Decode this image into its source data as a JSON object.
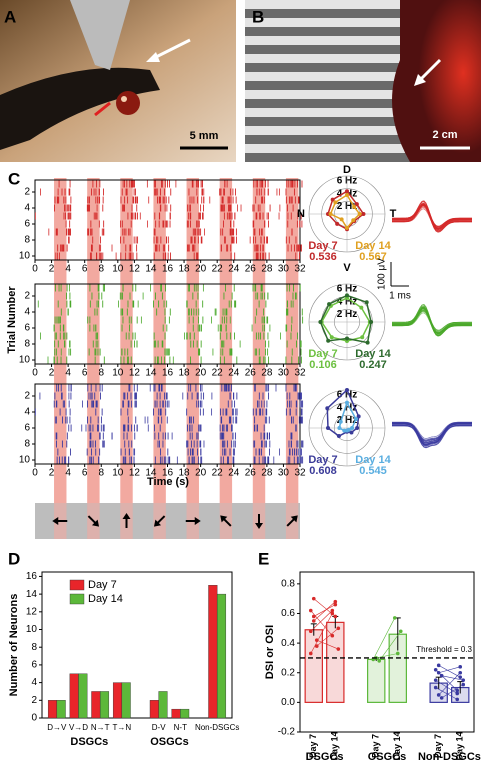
{
  "panel_labels": [
    "A",
    "B",
    "C",
    "D",
    "E"
  ],
  "photos": [
    {
      "scale": "5 mm"
    },
    {
      "scale": "2 cm"
    }
  ],
  "raster": {
    "y_label": "Trial Number",
    "x_label": "Time (s)",
    "xlim": [
      0,
      32
    ],
    "xticks": [
      0,
      2,
      4,
      6,
      8,
      10,
      12,
      14,
      16,
      18,
      20,
      22,
      24,
      26,
      28,
      30,
      32
    ],
    "ylim": [
      0.5,
      10.5
    ],
    "yticks": [
      2,
      4,
      6,
      8,
      10
    ],
    "rows": [
      {
        "color": "#d42a2a"
      },
      {
        "color": "#4aa82a"
      },
      {
        "color": "#3a3aa0"
      }
    ],
    "stim_color": "#f2a9a0",
    "stimuli": [
      {
        "start": 2.3,
        "end": 3.8,
        "direction": 180
      },
      {
        "start": 6.3,
        "end": 7.8,
        "direction": -45
      },
      {
        "start": 10.3,
        "end": 11.8,
        "direction": 90
      },
      {
        "start": 14.3,
        "end": 15.8,
        "direction": -135
      },
      {
        "start": 18.3,
        "end": 19.8,
        "direction": 0
      },
      {
        "start": 22.3,
        "end": 23.8,
        "direction": 135
      },
      {
        "start": 26.3,
        "end": 27.8,
        "direction": -90
      },
      {
        "start": 30.3,
        "end": 31.8,
        "direction": 45
      }
    ]
  },
  "polar": {
    "axis_labels": [
      "D",
      "V",
      "N",
      "T"
    ],
    "rlim": [
      0,
      6
    ],
    "rings": [
      {
        "value": 2,
        "label": "2 Hz"
      },
      {
        "value": 4,
        "label": "4 Hz"
      },
      {
        "value": 6,
        "label": "6 Hz"
      }
    ],
    "angles": [
      90,
      45,
      0,
      -45,
      -90,
      -135,
      180,
      135
    ],
    "plots": [
      {
        "series": [
          {
            "name": "Day 7",
            "color": "#c0282a",
            "values": [
              3.6,
              2.2,
              2.6,
              1.6,
              2.4,
              2.2,
              3.0,
              3.2
            ],
            "index": "0.536"
          },
          {
            "name": "Day 14",
            "color": "#e0a020",
            "values": [
              3.0,
              1.6,
              2.0,
              1.4,
              2.2,
              1.2,
              2.6,
              2.6
            ],
            "index": "0.567"
          }
        ]
      },
      {
        "series": [
          {
            "name": "Day 7",
            "color": "#6cc040",
            "values": [
              3.8,
              3.2,
              3.6,
              3.4,
              3.0,
              3.4,
              4.0,
              3.6
            ],
            "index": "0.106"
          },
          {
            "name": "Day 14",
            "color": "#2d6a2d",
            "values": [
              4.2,
              4.4,
              3.8,
              4.6,
              2.6,
              4.2,
              4.2,
              4.0
            ],
            "index": "0.247"
          }
        ]
      },
      {
        "series": [
          {
            "name": "Day 7",
            "color": "#3a3a98",
            "values": [
              6.0,
              2.6,
              1.6,
              1.0,
              0.6,
              1.8,
              3.0,
              4.4
            ],
            "index": "0.608"
          },
          {
            "name": "Day 14",
            "color": "#5aaee0",
            "values": [
              4.0,
              2.0,
              0.8,
              0.4,
              0.4,
              0.6,
              1.2,
              1.4
            ],
            "index": "0.545"
          }
        ]
      }
    ],
    "scale_v": "100 μV",
    "scale_t": "1 ms"
  },
  "chart_data": [
    {
      "type": "bar",
      "y_label": "Number of Neurons",
      "categories": [
        "D→V",
        "V→D",
        "N→T",
        "T→N",
        "D-V",
        "N-T",
        "Non-DSGCs"
      ],
      "groups": [
        "DSGCs",
        "OSGCs"
      ],
      "series": [
        {
          "name": "Day 7",
          "color": "#e8252a",
          "values": [
            2,
            5,
            3,
            4,
            2,
            1,
            15
          ]
        },
        {
          "name": "Day 14",
          "color": "#5cb83a",
          "values": [
            2,
            5,
            3,
            4,
            3,
            1,
            14
          ]
        }
      ],
      "ylim": [
        0,
        16.5
      ],
      "yticks": [
        0,
        2,
        4,
        6,
        8,
        10,
        12,
        14,
        16
      ],
      "legend": "upper-left"
    },
    {
      "type": "bar",
      "y_label": "DSI or OSI",
      "categories": [
        "Day 7",
        "Day 14",
        "Day 7",
        "Day 14",
        "Day 7",
        "Day 14"
      ],
      "groups": [
        "DSGCs",
        "OSGCs",
        "Non-DSGCs"
      ],
      "colors": [
        "#d82a2a",
        "#d82a2a",
        "#5cb83a",
        "#5cb83a",
        "#3a3aa0",
        "#3a3aa0"
      ],
      "values": [
        0.49,
        0.54,
        0.29,
        0.46,
        0.13,
        0.1
      ],
      "errors": [
        0.04,
        0.04,
        0.01,
        0.11,
        0.04,
        0.04
      ],
      "points": [
        [
          [
            0.62,
            0.45
          ],
          [
            0.55,
            0.68
          ],
          [
            0.38,
            0.5
          ],
          [
            0.48,
            0.62
          ],
          [
            0.7,
            0.58
          ],
          [
            0.42,
            0.36
          ],
          [
            0.33,
            0.6
          ],
          [
            0.58,
            0.66
          ]
        ],
        [
          [
            0.29,
            0.57
          ],
          [
            0.3,
            0.33
          ],
          [
            0.28,
            0.48
          ]
        ],
        [
          [
            0.22,
            0.08
          ],
          [
            0.05,
            0.2
          ],
          [
            0.18,
            0.15
          ],
          [
            0.1,
            0.02
          ],
          [
            0.25,
            0.17
          ],
          [
            0.03,
            0.12
          ],
          [
            0.15,
            0.06
          ],
          [
            0.2,
            0.24
          ]
        ]
      ],
      "threshold": 0.3,
      "threshold_label": "Threshold = 0.3",
      "ylim": [
        -0.2,
        0.88
      ],
      "yticks": [
        -0.2,
        {
          "value": 0,
          "label": "0.0"
        },
        0.2,
        0.4,
        0.6,
        0.8
      ]
    }
  ]
}
